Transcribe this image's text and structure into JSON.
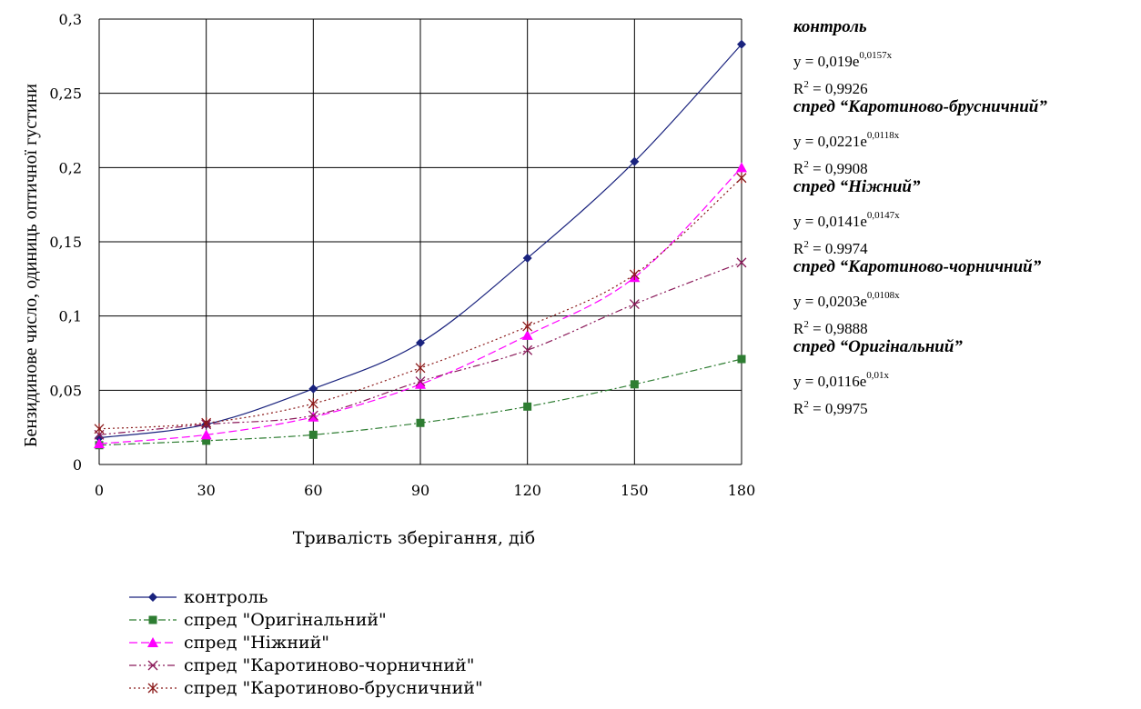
{
  "chart_data": {
    "type": "line",
    "ylabel": "Бензидинове число, одиниць оптичної густини",
    "xlabel": "Тривалість зберігання, діб",
    "x": [
      0,
      30,
      60,
      90,
      120,
      150,
      180
    ],
    "xlim": [
      0,
      180
    ],
    "ylim": [
      0,
      0.3
    ],
    "yticks": [
      "0",
      "0,05",
      "0,1",
      "0,15",
      "0,2",
      "0,25",
      "0,3"
    ],
    "yticks_values": [
      0,
      0.05,
      0.1,
      0.15,
      0.2,
      0.25,
      0.3
    ],
    "xticks": [
      "0",
      "30",
      "60",
      "90",
      "120",
      "150",
      "180"
    ],
    "grid": true,
    "legend_position": "bottom-left",
    "series": [
      {
        "name": "контроль",
        "color": "#1a237e",
        "marker": "diamond",
        "dash": "solid",
        "values": [
          0.018,
          0.027,
          0.051,
          0.082,
          0.139,
          0.204,
          0.283
        ],
        "trend": {
          "a": 0.019,
          "b": 0.0157
        }
      },
      {
        "name": "спред \"Оригінальний\"",
        "color": "#2e7d32",
        "marker": "square",
        "dash": "dashdot",
        "values": [
          0.013,
          0.016,
          0.02,
          0.028,
          0.039,
          0.054,
          0.071
        ],
        "trend": {
          "a": 0.0116,
          "b": 0.01
        }
      },
      {
        "name": "спред \"Ніжний\"",
        "color": "#ff00ff",
        "marker": "triangle",
        "dash": "dash",
        "values": [
          0.014,
          0.02,
          0.032,
          0.054,
          0.087,
          0.126,
          0.2
        ],
        "trend": {
          "a": 0.0141,
          "b": 0.0147
        }
      },
      {
        "name": "спред \"Каротиново-чорничний\"",
        "color": "#8b1a5a",
        "marker": "x",
        "dash": "dashdotdot",
        "values": [
          0.02,
          0.027,
          0.033,
          0.056,
          0.077,
          0.108,
          0.136
        ],
        "trend": {
          "a": 0.0203,
          "b": 0.0108
        }
      },
      {
        "name": "спред \"Каротиново-брусничний\"",
        "color": "#8b1a1a",
        "marker": "asterisk",
        "dash": "dot",
        "values": [
          0.024,
          0.028,
          0.041,
          0.065,
          0.093,
          0.128,
          0.193
        ],
        "trend": {
          "a": 0.0221,
          "b": 0.0118
        }
      }
    ]
  },
  "equations": [
    {
      "name": "контроль",
      "formula_prefix": "y = 0,019e",
      "exponent": "0,0157x",
      "r2_label": "R",
      "r2_sup": "2",
      "r2_value": " = 0,9926"
    },
    {
      "name": "спред “Каротиново-брусничний”",
      "formula_prefix": "y = 0,0221e",
      "exponent": "0,0118x",
      "r2_label": "R",
      "r2_sup": "2",
      "r2_value": " = 0,9908"
    },
    {
      "name": "спред “Ніжний”",
      "formula_prefix": "y = 0,0141e",
      "exponent": "0,0147x",
      "r2_label": "R",
      "r2_sup": "2",
      "r2_value": " = 0.9974"
    },
    {
      "name": "спред “Каротиново-чорничний”",
      "formula_prefix": "y = 0,0203e",
      "exponent": "0,0108x",
      "r2_label": "R",
      "r2_sup": "2",
      "r2_value": " = 0,9888"
    },
    {
      "name": "спред “Оригінальний”",
      "formula_prefix": "y = 0,0116e",
      "exponent": "0,01x",
      "r2_label": "R",
      "r2_sup": "2",
      "r2_value": " = 0,9975"
    }
  ]
}
